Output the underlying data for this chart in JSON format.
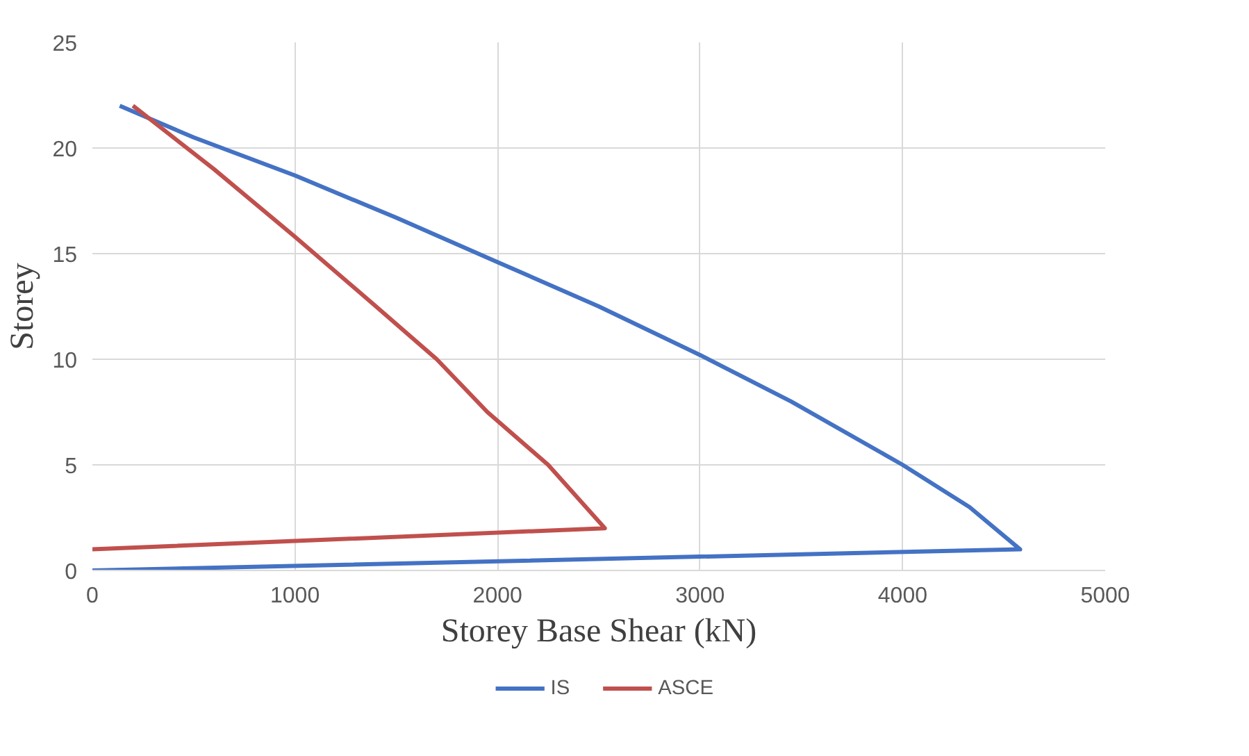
{
  "chart_data": {
    "type": "line",
    "xlabel": "Storey Base Shear (kN)",
    "ylabel": "Storey",
    "xlim": [
      0,
      5000
    ],
    "xticks": [
      0,
      1000,
      2000,
      3000,
      4000,
      5000
    ],
    "ylim": [
      0,
      25
    ],
    "yticks": [
      0,
      5,
      10,
      15,
      20,
      25
    ],
    "grid": true,
    "legend": "bottom",
    "line_style": "solid",
    "series": [
      {
        "name": "IS",
        "color": "#4472c4",
        "x": [
          0,
          4580,
          4330,
          4000,
          3450,
          3000,
          2500,
          2000,
          1500,
          1000,
          500,
          135
        ],
        "values": [
          0,
          1,
          3,
          5,
          8,
          10.2,
          12.5,
          14.6,
          16.7,
          18.7,
          20.5,
          22
        ]
      },
      {
        "name": "ASCE",
        "color": "#c0504d",
        "x": [
          0,
          2530,
          2250,
          1950,
          1700,
          1400,
          1000,
          600,
          200
        ],
        "values": [
          1,
          2,
          5,
          7.5,
          10,
          12.5,
          15.8,
          19,
          22
        ]
      }
    ]
  }
}
